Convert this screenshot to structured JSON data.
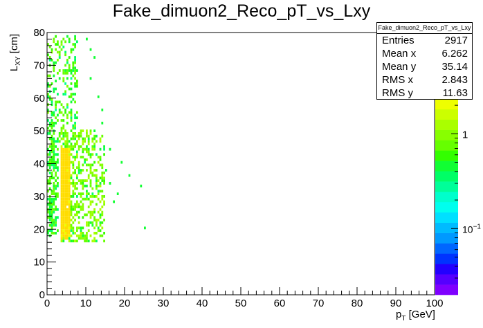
{
  "chart_data": {
    "type": "heatmap",
    "title": "Fake_dimuon2_Reco_pT_vs_Lxy",
    "xlabel": "p_T [GeV]",
    "ylabel": "L_XY [cm]",
    "xlim": [
      0,
      100
    ],
    "ylim": [
      0,
      80
    ],
    "x_ticks": [
      "0",
      "10",
      "20",
      "30",
      "40",
      "50",
      "60",
      "70",
      "80",
      "90",
      "100"
    ],
    "y_ticks": [
      "0",
      "10",
      "20",
      "30",
      "40",
      "50",
      "60",
      "70",
      "80"
    ],
    "z_scale": "log",
    "z_ticks": [
      "1",
      "10^-1"
    ],
    "z_range": [
      0.02,
      3.0
    ],
    "colorbar_colors": [
      "#7f00ff",
      "#5500ff",
      "#2200ff",
      "#0033ff",
      "#0066ff",
      "#0099ff",
      "#00bbff",
      "#00e0ff",
      "#00ffee",
      "#00ffcc",
      "#00ff99",
      "#00ff66",
      "#11ff33",
      "#33ff00",
      "#66ff00",
      "#88ff00",
      "#aaff00",
      "#ccff00",
      "#eeff00",
      "#ffdd00"
    ],
    "regions": [
      {
        "x": [
          3.7,
          5.6
        ],
        "y": [
          17,
          45
        ],
        "z": 2.6
      },
      {
        "x": [
          3.5,
          15
        ],
        "y": [
          16,
          50
        ],
        "z": 0.9
      },
      {
        "x": [
          0.3,
          8
        ],
        "y": [
          45,
          79
        ],
        "z": 0.7
      },
      {
        "x": [
          15,
          25
        ],
        "y": [
          18,
          42
        ],
        "z": 0.6
      }
    ]
  },
  "stats": {
    "title": "Fake_dimuon2_Reco_pT_vs_Lxy",
    "rows": [
      {
        "label": "Entries",
        "value": "2917"
      },
      {
        "label": "Mean x",
        "value": "6.262"
      },
      {
        "label": "Mean y",
        "value": "35.14"
      },
      {
        "label": "RMS x",
        "value": "2.843"
      },
      {
        "label": "RMS y",
        "value": "11.63"
      }
    ]
  }
}
